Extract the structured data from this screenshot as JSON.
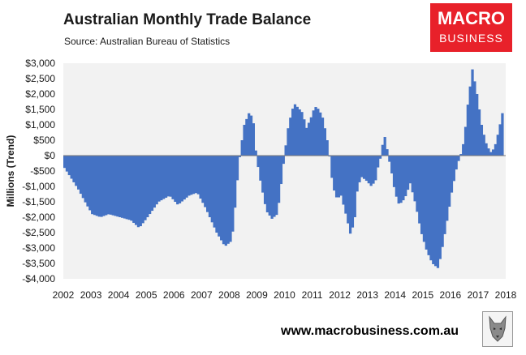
{
  "header": {
    "title": "Australian Monthly Trade Balance",
    "subtitle": "Source: Australian Bureau of Statistics"
  },
  "logo": {
    "line1": "MACRO",
    "line2": "BUSINESS",
    "color": "#e8212a"
  },
  "footer": {
    "url": "www.macrobusiness.com.au"
  },
  "colors": {
    "bar": "#4472c4",
    "plot_bg": "#f2f2f2"
  },
  "chart_data": {
    "type": "bar",
    "title": "Australian Monthly Trade Balance",
    "ylabel": "Millions (Trend)",
    "xlabel": "",
    "ylim": [
      -4000,
      3000
    ],
    "xlim": [
      2002,
      2018
    ],
    "grid": false,
    "yticks": [
      3000,
      2500,
      2000,
      1500,
      1000,
      500,
      0,
      -500,
      -1000,
      -1500,
      -2000,
      -2500,
      -3000,
      -3500,
      -4000
    ],
    "ytick_labels": [
      "$3,000",
      "$2,500",
      "$2,000",
      "$1,500",
      "$1,000",
      "$500",
      "$0",
      "-$500",
      "-$1,000",
      "-$1,500",
      "-$2,000",
      "-$2,500",
      "-$3,000",
      "-$3,500",
      "-$4,000"
    ],
    "xtick_labels": [
      "2002",
      "2003",
      "2004",
      "2005",
      "2006",
      "2007",
      "2008",
      "2009",
      "2010",
      "2011",
      "2012",
      "2013",
      "2014",
      "2015",
      "2016",
      "2017",
      "2018"
    ],
    "series": [
      {
        "points": [
          [
            2002.0,
            -400
          ],
          [
            2002.5,
            -1100
          ],
          [
            2002.8,
            -1600
          ],
          [
            2003.0,
            -1900
          ],
          [
            2003.3,
            -2000
          ],
          [
            2003.6,
            -1900
          ],
          [
            2004.0,
            -2000
          ],
          [
            2004.4,
            -2100
          ],
          [
            2004.7,
            -2350
          ],
          [
            2005.0,
            -2000
          ],
          [
            2005.4,
            -1500
          ],
          [
            2005.8,
            -1300
          ],
          [
            2006.1,
            -1600
          ],
          [
            2006.5,
            -1300
          ],
          [
            2006.8,
            -1200
          ],
          [
            2007.1,
            -1700
          ],
          [
            2007.5,
            -2500
          ],
          [
            2007.8,
            -2950
          ],
          [
            2008.0,
            -2800
          ],
          [
            2008.1,
            -2400
          ],
          [
            2008.25,
            -800
          ],
          [
            2008.35,
            100
          ],
          [
            2008.5,
            1000
          ],
          [
            2008.7,
            1450
          ],
          [
            2008.85,
            1000
          ],
          [
            2008.93,
            0
          ],
          [
            2009.1,
            -900
          ],
          [
            2009.3,
            -1800
          ],
          [
            2009.5,
            -2050
          ],
          [
            2009.7,
            -1900
          ],
          [
            2009.85,
            -800
          ],
          [
            2009.95,
            0
          ],
          [
            2010.1,
            1000
          ],
          [
            2010.3,
            1700
          ],
          [
            2010.45,
            1550
          ],
          [
            2010.6,
            1400
          ],
          [
            2010.75,
            900
          ],
          [
            2010.9,
            1200
          ],
          [
            2011.05,
            1600
          ],
          [
            2011.2,
            1500
          ],
          [
            2011.35,
            1200
          ],
          [
            2011.5,
            500
          ],
          [
            2011.58,
            0
          ],
          [
            2011.7,
            -1000
          ],
          [
            2011.85,
            -1400
          ],
          [
            2012.0,
            -1300
          ],
          [
            2012.2,
            -2000
          ],
          [
            2012.35,
            -2600
          ],
          [
            2012.5,
            -2000
          ],
          [
            2012.6,
            -1000
          ],
          [
            2012.75,
            -700
          ],
          [
            2012.9,
            -800
          ],
          [
            2013.1,
            -1000
          ],
          [
            2013.25,
            -800
          ],
          [
            2013.35,
            -300
          ],
          [
            2013.45,
            0
          ],
          [
            2013.55,
            700
          ],
          [
            2013.62,
            500
          ],
          [
            2013.7,
            0
          ],
          [
            2013.8,
            -400
          ],
          [
            2013.95,
            -1200
          ],
          [
            2014.1,
            -1600
          ],
          [
            2014.3,
            -1400
          ],
          [
            2014.5,
            -900
          ],
          [
            2014.7,
            -1600
          ],
          [
            2014.9,
            -2500
          ],
          [
            2015.1,
            -3100
          ],
          [
            2015.3,
            -3500
          ],
          [
            2015.5,
            -3650
          ],
          [
            2015.6,
            -3300
          ],
          [
            2015.8,
            -2300
          ],
          [
            2016.0,
            -1200
          ],
          [
            2016.2,
            -300
          ],
          [
            2016.32,
            0
          ],
          [
            2016.45,
            500
          ],
          [
            2016.6,
            1800
          ],
          [
            2016.75,
            2800
          ],
          [
            2016.9,
            2100
          ],
          [
            2017.1,
            900
          ],
          [
            2017.25,
            400
          ],
          [
            2017.4,
            100
          ],
          [
            2017.55,
            250
          ],
          [
            2017.7,
            800
          ],
          [
            2017.85,
            1450
          ],
          [
            2017.9,
            0
          ]
        ]
      }
    ]
  }
}
